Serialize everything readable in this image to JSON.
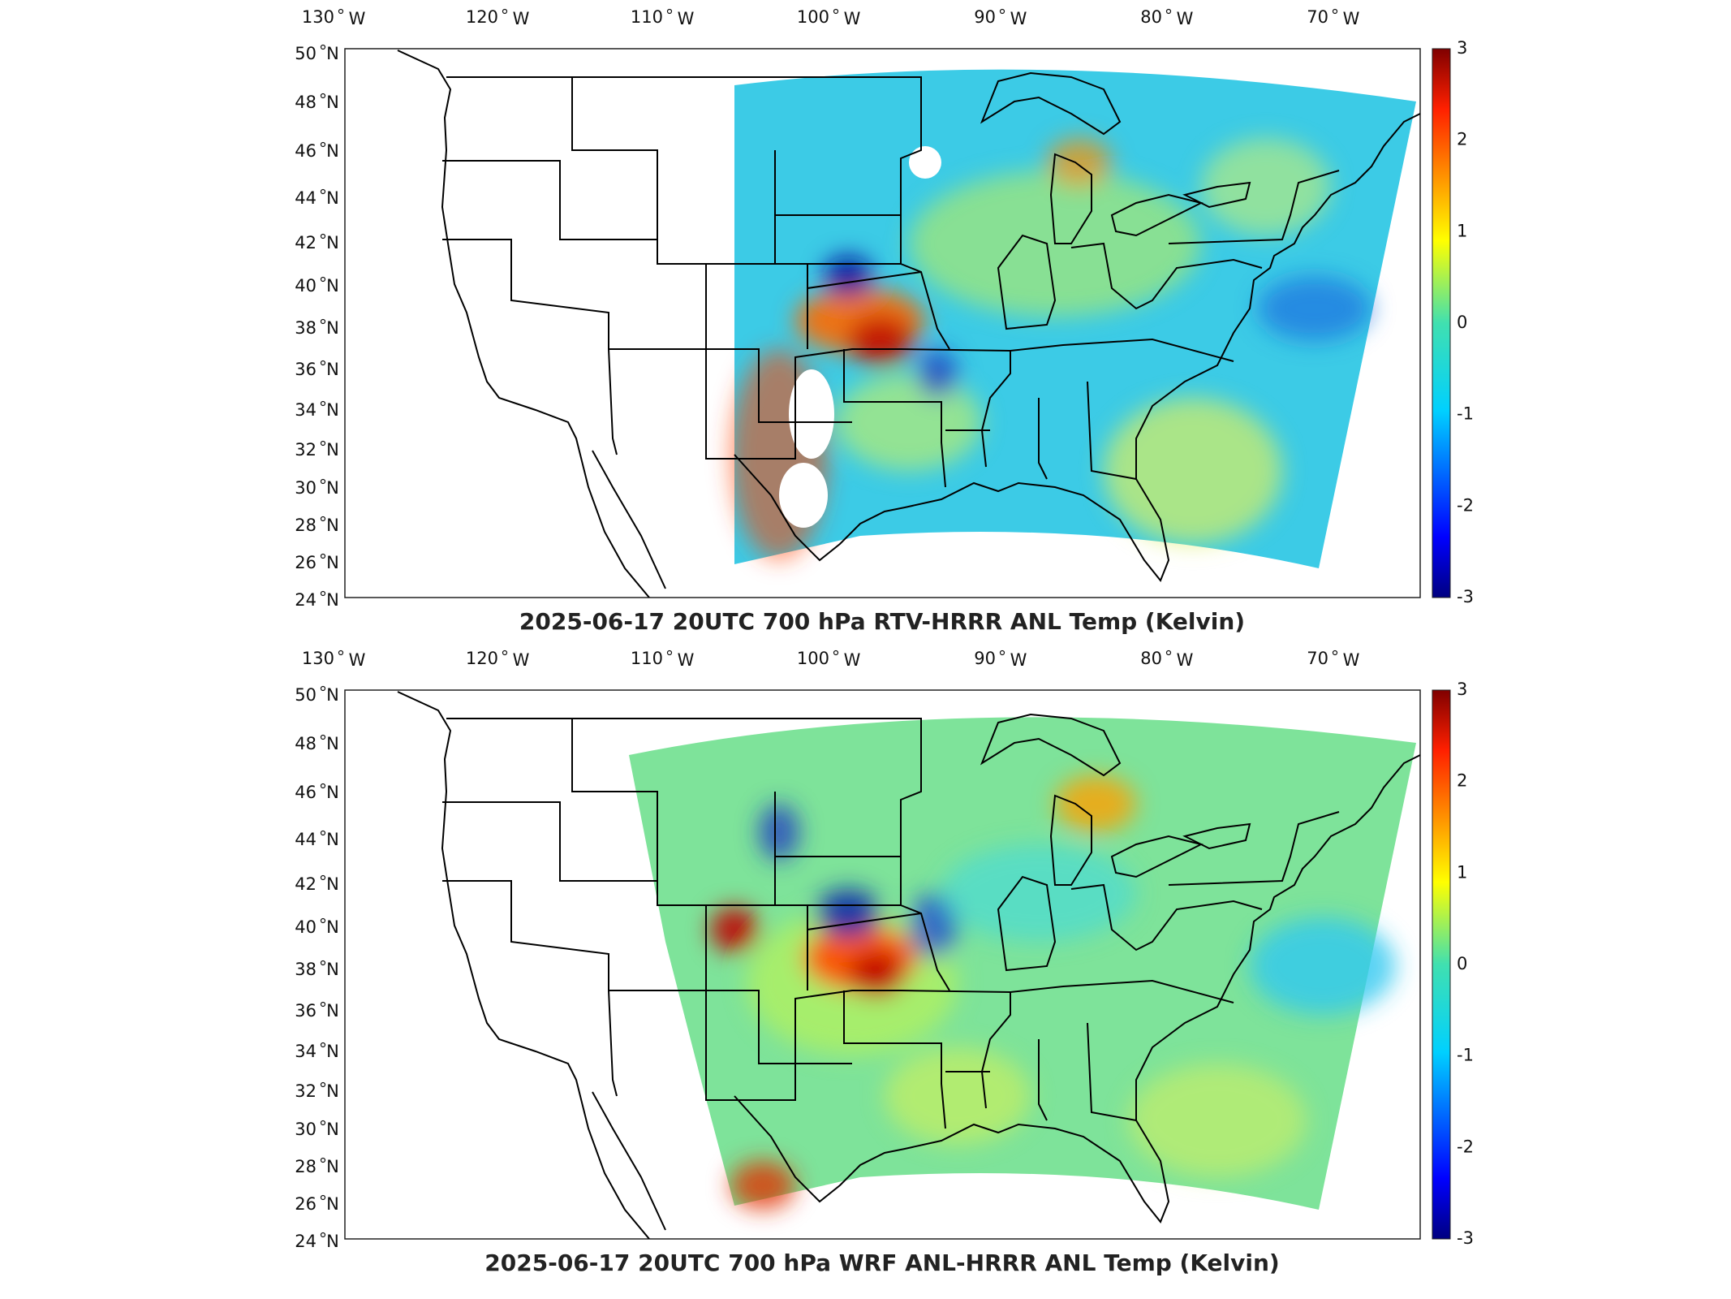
{
  "panels": [
    {
      "id": "top",
      "title": "2025-06-17 20UTC 700 hPa RTV-HRRR ANL Temp (Kelvin)",
      "lon_labels": [
        "130",
        "120",
        "110",
        "100",
        "90",
        "80",
        "70"
      ],
      "lon_suffix": "W",
      "lat_labels": [
        "50",
        "48",
        "46",
        "44",
        "42",
        "40",
        "38",
        "36",
        "34",
        "32",
        "30",
        "28",
        "26",
        "24"
      ],
      "lat_suffix": "N",
      "colorbar_ticks": [
        "3",
        "2",
        "1",
        "0",
        "-1",
        "-2",
        "-3"
      ],
      "colorbar_range": [
        -3,
        3
      ],
      "domain_west_extent_lon": -108
    },
    {
      "id": "bottom",
      "title": "2025-06-17 20UTC 700 hPa WRF ANL-HRRR ANL Temp (Kelvin)",
      "lon_labels": [
        "130",
        "120",
        "110",
        "100",
        "90",
        "80",
        "70"
      ],
      "lon_suffix": "W",
      "lat_labels": [
        "50",
        "48",
        "46",
        "44",
        "42",
        "40",
        "38",
        "36",
        "34",
        "32",
        "30",
        "28",
        "26",
        "24"
      ],
      "lat_suffix": "N",
      "colorbar_ticks": [
        "3",
        "2",
        "1",
        "0",
        "-1",
        "-2",
        "-3"
      ],
      "colorbar_range": [
        -3,
        3
      ],
      "domain_west_extent_lon": -114
    }
  ],
  "colormap": "jet",
  "colors": {
    "warm_anomaly": "#cc1a00",
    "cool_anomaly": "#1a3acc",
    "neutral": "#40e0b0",
    "background_field": "#38c8e8"
  }
}
